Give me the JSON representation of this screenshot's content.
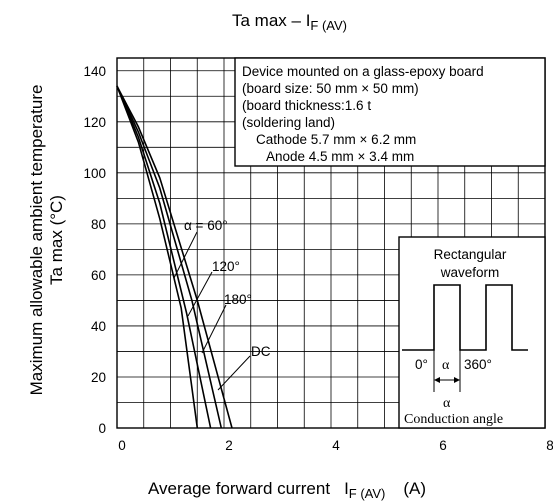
{
  "chart_data": {
    "type": "line",
    "title": {
      "main": "Ta max – I",
      "sub": "F (AV)"
    },
    "ylabel": {
      "line1": "Maximum allowable ambient temperature",
      "line2": "Ta max   (°C)"
    },
    "xlabel": {
      "main": "Average forward current",
      "symbol": "I",
      "sub": "F (AV)",
      "unit": "(A)"
    },
    "xlim": [
      0,
      8
    ],
    "ylim": [
      0,
      145
    ],
    "x_ticks": [
      "0",
      "2",
      "4",
      "6",
      "8"
    ],
    "y_ticks": [
      "0",
      "20",
      "40",
      "60",
      "80",
      "100",
      "120",
      "140"
    ],
    "grid": true,
    "series": [
      {
        "name": "α = 60°",
        "points": [
          [
            0,
            134
          ],
          [
            0.4,
            112
          ],
          [
            0.8,
            82
          ],
          [
            1.2,
            47
          ],
          [
            1.5,
            0
          ]
        ]
      },
      {
        "name": "120°",
        "points": [
          [
            0,
            134
          ],
          [
            0.4,
            114
          ],
          [
            0.8,
            88
          ],
          [
            1.3,
            45
          ],
          [
            1.75,
            0
          ]
        ]
      },
      {
        "name": "180°",
        "points": [
          [
            0,
            134
          ],
          [
            0.4,
            116
          ],
          [
            0.8,
            94
          ],
          [
            1.4,
            50
          ],
          [
            1.95,
            0
          ]
        ]
      },
      {
        "name": "DC",
        "points": [
          [
            0,
            134
          ],
          [
            0.4,
            118
          ],
          [
            0.8,
            98
          ],
          [
            1.5,
            50
          ],
          [
            2.15,
            0
          ]
        ]
      }
    ],
    "annotations": {
      "conditions": [
        "Device mounted on a glass-epoxy board",
        "(board size: 50 mm × 50 mm)",
        "(board thickness:1.6 t",
        "(soldering land)",
        "Cathode 5.7 mm × 6.2 mm",
        "Anode   4.5 mm × 3.4 mm"
      ],
      "inset": {
        "title1": "Rectangular",
        "title2": "waveform",
        "label_zero": "0°",
        "label_alpha": "α",
        "label_360": "360°",
        "label_alpha_below": "α",
        "caption": "Conduction angle"
      }
    }
  }
}
